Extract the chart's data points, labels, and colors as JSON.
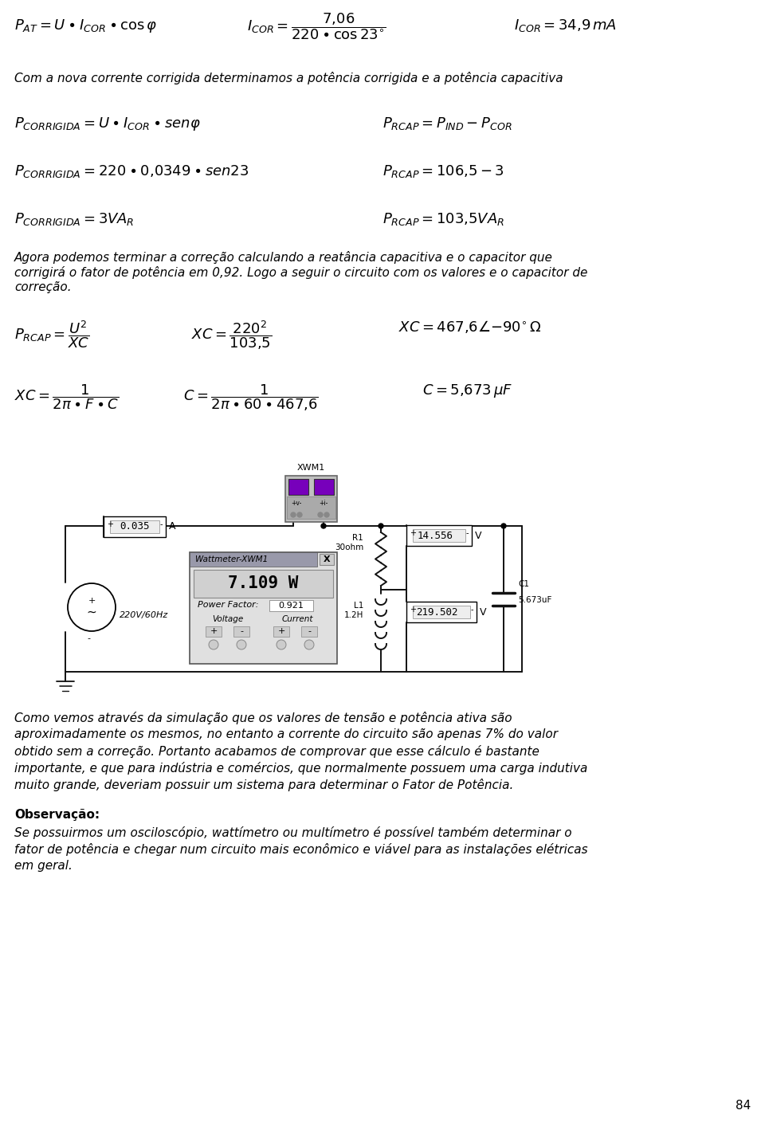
{
  "background_color": "#ffffff",
  "page_number": "84",
  "line1_formula1": "$P_{AT} = U \\bullet I_{COR} \\bullet \\cos\\varphi$",
  "line1_formula2": "$I_{COR} = \\dfrac{7{,}06}{220 \\bullet \\cos 23^{\\circ}}$",
  "line1_formula3": "$I_{COR} = 34{,}9\\,mA$",
  "line2_text": "Com a nova corrente corrigida determinamos a potência corrigida e a potência capacitiva",
  "line3_left": "$P_{CORRIGIDA} = U \\bullet I_{COR} \\bullet sen\\varphi$",
  "line3_right": "$P_{RCAP} = P_{IND} - P_{COR}$",
  "line4_left": "$P_{CORRIGIDA} = 220 \\bullet 0{,}0349 \\bullet sen23$",
  "line4_right": "$P_{RCAP} = 106{,}5 - 3$",
  "line5_left": "$P_{CORRIGIDA} = 3VA_R$",
  "line5_right": "$P_{RCAP} = 103{,}5VA_R$",
  "paragraph1_line1": "Agora podemos terminar a correção calculando a reatância capacitiva e o capacitor que",
  "paragraph1_line2": "corrigirá o fator de potência em 0,92. Logo a seguir o circuito com os valores e o capacitor de",
  "paragraph1_line3": "correção.",
  "line6_formula1": "$P_{RCAP} = \\dfrac{U^2}{XC}$",
  "line6_formula2": "$XC = \\dfrac{220^2}{103{,}5}$",
  "line6_formula3": "$XC = 467{,}6\\angle{-90^{\\circ}}\\,\\Omega$",
  "line7_formula1": "$XC = \\dfrac{1}{2\\pi \\bullet F \\bullet C}$",
  "line7_formula2": "$C = \\dfrac{1}{2\\pi \\bullet 60 \\bullet 467{,}6}$",
  "line7_formula3": "$C = 5{,}673\\,\\mu F$",
  "paragraph2_lines": [
    "Como vemos através da simulação que os valores de tensão e potência ativa são",
    "aproximadamente os mesmos, no entanto a corrente do circuito são apenas 7% do valor",
    "obtido sem a correção. Portanto acabamos de comprovar que esse cálculo é bastante",
    "importante, e que para indústria e comércios, que normalmente possuem uma carga indutiva",
    "muito grande, deveriam possuir um sistema para determinar o Fator de Potência."
  ],
  "obs_title": "Observação:",
  "obs_lines": [
    "Se possuirmos um osciloscópio, wattímetro ou multímetro é possível também determinar o",
    "fator de potência e chegar num circuito mais econômico e viável para as instalações elétricas",
    "em geral."
  ],
  "xwm_label": "XWM1",
  "ammeter_val": "0.035",
  "ammeter_unit": "A",
  "source_label": "220V/60Hz",
  "watt_title": "Wattmeter-XWM1",
  "watt_power": "7.109 W",
  "watt_pf_label": "Power Factor:",
  "watt_pf_val": "0.921",
  "watt_v_label": "Voltage",
  "watt_i_label": "Current",
  "r1_label": "R1",
  "r1_val": "30ohm",
  "vm1_val": "14.556",
  "vm1_unit": "V",
  "l1_label": "L1",
  "l1_val": "1.2H",
  "vm2_val": "219.502",
  "vm2_unit": "V",
  "c1_label": "C1",
  "c1_val": "5.673uF"
}
